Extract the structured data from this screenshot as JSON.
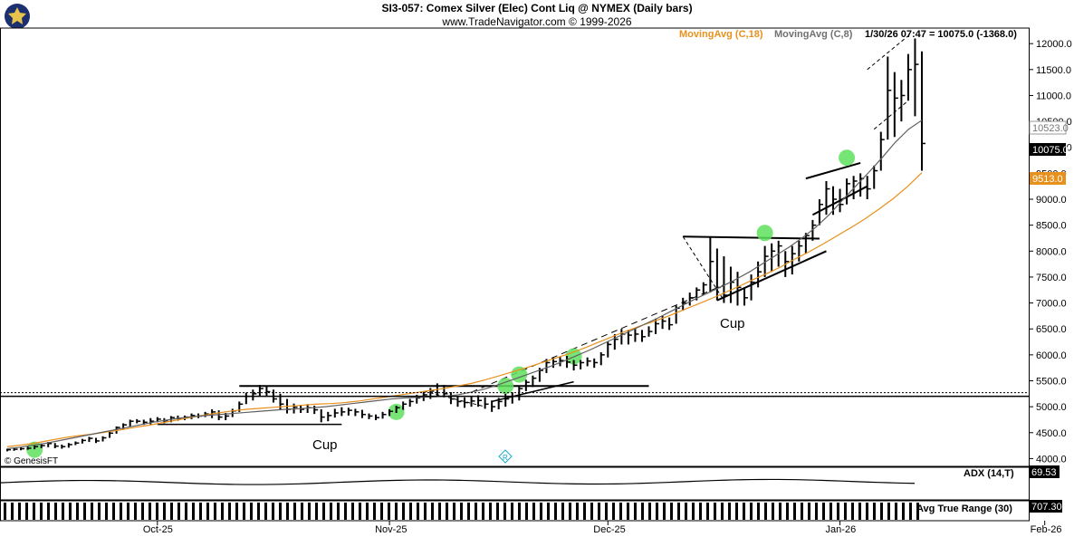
{
  "header": {
    "title": "SI3-057:  Comex Silver (Elec) Cont Liq @ NYMEX  (Daily bars)",
    "subtitle": "www.TradeNavigator.com © 1999-2026"
  },
  "legend": {
    "ma18": "MovingAvg (C,18)",
    "ma8": "MovingAvg (C,8)",
    "last": "1/30/26 07:47 = 10075.0 (-1368.0)"
  },
  "price_badges": {
    "ma8": "10523.0",
    "last": "10075.0",
    "ma18": "9513.0"
  },
  "annotations": {
    "cup1": "Cup",
    "cup2": "Cup",
    "genesis": "© GenesisFT"
  },
  "indicators": {
    "adx_label": "ADX (14,T)",
    "adx_value": "69.53",
    "atr_label": "Avg True Range (30)",
    "atr_value": "707.30"
  },
  "colors": {
    "ma18": "#e8901c",
    "ma8": "#606060",
    "bars": "#000000",
    "signal": "#5ee05e",
    "background": "#ffffff"
  },
  "chart_data": {
    "type": "ohlc",
    "ylim": [
      3850,
      12300
    ],
    "y_ticks": [
      4000,
      4500,
      5000,
      5500,
      6000,
      6500,
      7000,
      7500,
      8000,
      8500,
      9000,
      9500,
      10000,
      10500,
      11000,
      11500,
      12000
    ],
    "y_tick_labels": [
      "4000.0",
      "4500.0",
      "5000.0",
      "5500.0",
      "6000.0",
      "6500.0",
      "7000.0",
      "7500.0",
      "8000.0",
      "8500.0",
      "9000.0",
      "9500.0",
      "10000.0",
      "10500.0",
      "11000.0",
      "11500.0",
      "12000.0"
    ],
    "x_labels": [
      "Oct-25",
      "Nov-25",
      "Dec-25",
      "Jan-26",
      "Feb-26"
    ],
    "x_label_bar_index": [
      22,
      56,
      88,
      122,
      152
    ],
    "bars": [
      {
        "h": 4190,
        "l": 4140,
        "c": 4170
      },
      {
        "h": 4200,
        "l": 4150,
        "c": 4180
      },
      {
        "h": 4220,
        "l": 4160,
        "c": 4190
      },
      {
        "h": 4230,
        "l": 4170,
        "c": 4200
      },
      {
        "h": 4250,
        "l": 4180,
        "c": 4230
      },
      {
        "h": 4280,
        "l": 4200,
        "c": 4250
      },
      {
        "h": 4320,
        "l": 4220,
        "c": 4290
      },
      {
        "h": 4300,
        "l": 4200,
        "c": 4240
      },
      {
        "h": 4270,
        "l": 4190,
        "c": 4230
      },
      {
        "h": 4300,
        "l": 4210,
        "c": 4270
      },
      {
        "h": 4330,
        "l": 4260,
        "c": 4300
      },
      {
        "h": 4380,
        "l": 4290,
        "c": 4350
      },
      {
        "h": 4420,
        "l": 4320,
        "c": 4390
      },
      {
        "h": 4400,
        "l": 4300,
        "c": 4340
      },
      {
        "h": 4430,
        "l": 4330,
        "c": 4400
      },
      {
        "h": 4520,
        "l": 4400,
        "c": 4490
      },
      {
        "h": 4620,
        "l": 4480,
        "c": 4600
      },
      {
        "h": 4680,
        "l": 4560,
        "c": 4650
      },
      {
        "h": 4750,
        "l": 4620,
        "c": 4720
      },
      {
        "h": 4760,
        "l": 4680,
        "c": 4720
      },
      {
        "h": 4750,
        "l": 4650,
        "c": 4700
      },
      {
        "h": 4780,
        "l": 4660,
        "c": 4720
      },
      {
        "h": 4800,
        "l": 4700,
        "c": 4760
      },
      {
        "h": 4780,
        "l": 4680,
        "c": 4730
      },
      {
        "h": 4820,
        "l": 4700,
        "c": 4790
      },
      {
        "h": 4830,
        "l": 4730,
        "c": 4770
      },
      {
        "h": 4830,
        "l": 4740,
        "c": 4800
      },
      {
        "h": 4870,
        "l": 4760,
        "c": 4830
      },
      {
        "h": 4870,
        "l": 4780,
        "c": 4820
      },
      {
        "h": 4900,
        "l": 4800,
        "c": 4860
      },
      {
        "h": 4950,
        "l": 4780,
        "c": 4900
      },
      {
        "h": 4930,
        "l": 4740,
        "c": 4800
      },
      {
        "h": 4880,
        "l": 4740,
        "c": 4820
      },
      {
        "h": 4960,
        "l": 4800,
        "c": 4920
      },
      {
        "h": 5100,
        "l": 4900,
        "c": 5050
      },
      {
        "h": 5270,
        "l": 5050,
        "c": 5200
      },
      {
        "h": 5330,
        "l": 5120,
        "c": 5250
      },
      {
        "h": 5420,
        "l": 5200,
        "c": 5350
      },
      {
        "h": 5400,
        "l": 5200,
        "c": 5290
      },
      {
        "h": 5330,
        "l": 5080,
        "c": 5150
      },
      {
        "h": 5250,
        "l": 4950,
        "c": 5050
      },
      {
        "h": 5150,
        "l": 4870,
        "c": 4950
      },
      {
        "h": 5060,
        "l": 4870,
        "c": 4990
      },
      {
        "h": 5030,
        "l": 4880,
        "c": 4950
      },
      {
        "h": 5050,
        "l": 4880,
        "c": 4980
      },
      {
        "h": 5020,
        "l": 4860,
        "c": 4940
      },
      {
        "h": 4950,
        "l": 4700,
        "c": 4800
      },
      {
        "h": 4900,
        "l": 4720,
        "c": 4830
      },
      {
        "h": 4960,
        "l": 4790,
        "c": 4880
      },
      {
        "h": 4990,
        "l": 4820,
        "c": 4900
      },
      {
        "h": 4980,
        "l": 4830,
        "c": 4930
      },
      {
        "h": 4960,
        "l": 4820,
        "c": 4900
      },
      {
        "h": 4940,
        "l": 4780,
        "c": 4850
      },
      {
        "h": 4870,
        "l": 4760,
        "c": 4820
      },
      {
        "h": 4850,
        "l": 4740,
        "c": 4790
      },
      {
        "h": 4900,
        "l": 4770,
        "c": 4850
      },
      {
        "h": 4950,
        "l": 4820,
        "c": 4910
      },
      {
        "h": 5020,
        "l": 4880,
        "c": 4980
      },
      {
        "h": 5100,
        "l": 4940,
        "c": 5050
      },
      {
        "h": 5150,
        "l": 5000,
        "c": 5100
      },
      {
        "h": 5230,
        "l": 5060,
        "c": 5170
      },
      {
        "h": 5290,
        "l": 5110,
        "c": 5230
      },
      {
        "h": 5360,
        "l": 5150,
        "c": 5300
      },
      {
        "h": 5450,
        "l": 5200,
        "c": 5400
      },
      {
        "h": 5420,
        "l": 5180,
        "c": 5250
      },
      {
        "h": 5280,
        "l": 5050,
        "c": 5150
      },
      {
        "h": 5200,
        "l": 5000,
        "c": 5100
      },
      {
        "h": 5180,
        "l": 4980,
        "c": 5080
      },
      {
        "h": 5200,
        "l": 5000,
        "c": 5110
      },
      {
        "h": 5220,
        "l": 5000,
        "c": 5120
      },
      {
        "h": 5180,
        "l": 4960,
        "c": 5050
      },
      {
        "h": 5120,
        "l": 4900,
        "c": 5000
      },
      {
        "h": 5170,
        "l": 4950,
        "c": 5100
      },
      {
        "h": 5250,
        "l": 5000,
        "c": 5150
      },
      {
        "h": 5280,
        "l": 5060,
        "c": 5200
      },
      {
        "h": 5400,
        "l": 5120,
        "c": 5350
      },
      {
        "h": 5520,
        "l": 5300,
        "c": 5470
      },
      {
        "h": 5600,
        "l": 5380,
        "c": 5550
      },
      {
        "h": 5750,
        "l": 5480,
        "c": 5700
      },
      {
        "h": 5920,
        "l": 5650,
        "c": 5850
      },
      {
        "h": 5950,
        "l": 5750,
        "c": 5870
      },
      {
        "h": 5960,
        "l": 5780,
        "c": 5890
      },
      {
        "h": 5980,
        "l": 5750,
        "c": 5860
      },
      {
        "h": 5900,
        "l": 5700,
        "c": 5800
      },
      {
        "h": 5900,
        "l": 5720,
        "c": 5850
      },
      {
        "h": 5950,
        "l": 5780,
        "c": 5880
      },
      {
        "h": 5930,
        "l": 5750,
        "c": 5850
      },
      {
        "h": 6050,
        "l": 5800,
        "c": 6000
      },
      {
        "h": 6250,
        "l": 5950,
        "c": 6200
      },
      {
        "h": 6400,
        "l": 6100,
        "c": 6300
      },
      {
        "h": 6500,
        "l": 6200,
        "c": 6400
      },
      {
        "h": 6480,
        "l": 6200,
        "c": 6380
      },
      {
        "h": 6500,
        "l": 6250,
        "c": 6400
      },
      {
        "h": 6480,
        "l": 6250,
        "c": 6350
      },
      {
        "h": 6550,
        "l": 6350,
        "c": 6450
      },
      {
        "h": 6700,
        "l": 6400,
        "c": 6600
      },
      {
        "h": 6750,
        "l": 6500,
        "c": 6650
      },
      {
        "h": 6720,
        "l": 6480,
        "c": 6580
      },
      {
        "h": 6950,
        "l": 6600,
        "c": 6900
      },
      {
        "h": 7100,
        "l": 6850,
        "c": 7000
      },
      {
        "h": 7200,
        "l": 6950,
        "c": 7100
      },
      {
        "h": 7300,
        "l": 7050,
        "c": 7250
      },
      {
        "h": 7400,
        "l": 7150,
        "c": 7350
      },
      {
        "h": 8280,
        "l": 7200,
        "c": 7800
      },
      {
        "h": 8050,
        "l": 7050,
        "c": 7300
      },
      {
        "h": 7900,
        "l": 7000,
        "c": 7150
      },
      {
        "h": 7700,
        "l": 7000,
        "c": 7400
      },
      {
        "h": 7600,
        "l": 6950,
        "c": 7300
      },
      {
        "h": 7300,
        "l": 6950,
        "c": 7100
      },
      {
        "h": 7550,
        "l": 7050,
        "c": 7400
      },
      {
        "h": 7800,
        "l": 7300,
        "c": 7600
      },
      {
        "h": 8100,
        "l": 7500,
        "c": 7900
      },
      {
        "h": 8150,
        "l": 7600,
        "c": 8000
      },
      {
        "h": 8200,
        "l": 7700,
        "c": 8100
      },
      {
        "h": 8000,
        "l": 7500,
        "c": 7800
      },
      {
        "h": 8100,
        "l": 7550,
        "c": 7950
      },
      {
        "h": 8200,
        "l": 7800,
        "c": 8100
      },
      {
        "h": 8350,
        "l": 7950,
        "c": 8300
      },
      {
        "h": 8600,
        "l": 8200,
        "c": 8500
      },
      {
        "h": 9000,
        "l": 8500,
        "c": 8900
      },
      {
        "h": 9350,
        "l": 8700,
        "c": 9200
      },
      {
        "h": 9250,
        "l": 8700,
        "c": 9000
      },
      {
        "h": 9200,
        "l": 8750,
        "c": 8900
      },
      {
        "h": 9400,
        "l": 8900,
        "c": 9300
      },
      {
        "h": 9450,
        "l": 9000,
        "c": 9350
      },
      {
        "h": 9500,
        "l": 9050,
        "c": 9400
      },
      {
        "h": 9450,
        "l": 9000,
        "c": 9200
      },
      {
        "h": 9650,
        "l": 9200,
        "c": 9550
      },
      {
        "h": 10300,
        "l": 9550,
        "c": 10150
      },
      {
        "h": 11750,
        "l": 10150,
        "c": 11100
      },
      {
        "h": 11450,
        "l": 10200,
        "c": 10950
      },
      {
        "h": 11300,
        "l": 10500,
        "c": 11000
      },
      {
        "h": 11800,
        "l": 10900,
        "c": 11500
      },
      {
        "h": 12100,
        "l": 10600,
        "c": 11600
      },
      {
        "h": 11850,
        "l": 9550,
        "c": 10075
      }
    ],
    "ma18": [
      4230,
      4260,
      4300,
      4350,
      4400,
      4440,
      4470,
      4510,
      4550,
      4600,
      4640,
      4690,
      4740,
      4790,
      4840,
      4880,
      4920,
      4950,
      4970,
      4990,
      5010,
      5030,
      5050,
      5060,
      5080,
      5110,
      5150,
      5190,
      5230,
      5270,
      5310,
      5350,
      5400,
      5450,
      5520,
      5600,
      5680,
      5760,
      5850,
      5940,
      6030,
      6130,
      6240,
      6350,
      6460,
      6560,
      6650,
      6750,
      6860,
      6970,
      7080,
      7200,
      7320,
      7450,
      7570,
      7700,
      7850,
      7990,
      8140,
      8300,
      8460,
      8630,
      8820,
      9020,
      9250,
      9513
    ],
    "ma8": [
      4190,
      4220,
      4260,
      4300,
      4350,
      4400,
      4450,
      4500,
      4550,
      4600,
      4650,
      4700,
      4740,
      4780,
      4810,
      4830,
      4850,
      4870,
      4890,
      4910,
      4930,
      4950,
      4960,
      4980,
      5000,
      5030,
      5060,
      5090,
      5120,
      5150,
      5170,
      5180,
      5190,
      5200,
      5230,
      5280,
      5340,
      5420,
      5510,
      5600,
      5690,
      5780,
      5880,
      5990,
      6100,
      6220,
      6340,
      6460,
      6580,
      6700,
      6830,
      6960,
      7090,
      7210,
      7330,
      7460,
      7600,
      7760,
      7920,
      8080,
      8260,
      8460,
      8700,
      8980,
      9250,
      9520,
      9800,
      10100,
      10350,
      10523
    ],
    "adx_value": 69.53,
    "atr_value": 707.3
  }
}
